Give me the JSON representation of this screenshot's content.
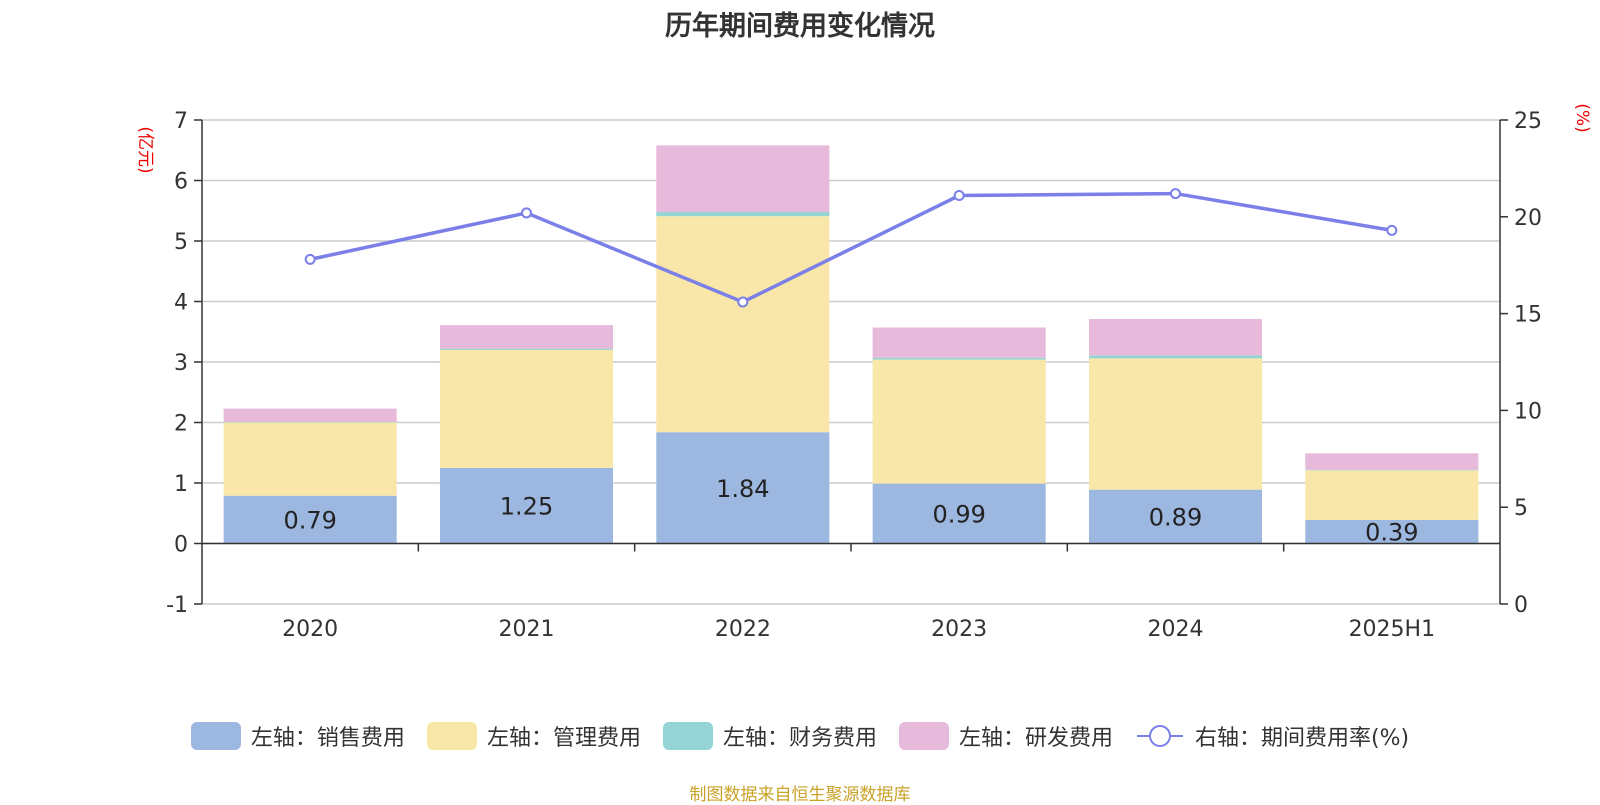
{
  "title": "历年期间费用变化情况",
  "left_unit": "(亿元)",
  "right_unit": "(%)",
  "source": "制图数据来自恒生聚源数据库",
  "colors": {
    "sales": "#9db8e0",
    "admin": "#f8e7a8",
    "finance": "#94d4d4",
    "rd": "#e7b9da",
    "rate": "#7b7fe8",
    "grid": "#cccccc",
    "axis": "#333333",
    "unit": "#ee0000"
  },
  "legend": [
    {
      "label": "左轴：销售费用",
      "key": "sales",
      "icon": "rect-swatch"
    },
    {
      "label": "左轴：管理费用",
      "key": "admin",
      "icon": "rect-swatch"
    },
    {
      "label": "左轴：财务费用",
      "key": "finance",
      "icon": "rect-swatch"
    },
    {
      "label": "左轴：研发费用",
      "key": "rd",
      "icon": "rect-swatch"
    },
    {
      "label": "右轴：期间费用率(%)",
      "key": "rate",
      "icon": "line-circle"
    }
  ],
  "chart_data": {
    "type": "bar",
    "stacked": true,
    "categories": [
      "2020",
      "2021",
      "2022",
      "2023",
      "2024",
      "2025H1"
    ],
    "series": [
      {
        "name": "左轴：销售费用",
        "key": "sales",
        "axis": "left",
        "values": [
          0.79,
          1.25,
          1.84,
          0.99,
          0.89,
          0.39
        ],
        "data_labels": [
          "0.79",
          "1.25",
          "1.84",
          "0.99",
          "0.89",
          "0.39"
        ]
      },
      {
        "name": "左轴：管理费用",
        "key": "admin",
        "axis": "left",
        "values": [
          1.21,
          1.95,
          3.57,
          2.05,
          2.17,
          0.82
        ]
      },
      {
        "name": "左轴：财务费用",
        "key": "finance",
        "axis": "left",
        "values": [
          0.01,
          0.02,
          0.07,
          0.03,
          0.05,
          0.01
        ]
      },
      {
        "name": "左轴：研发费用",
        "key": "rd",
        "axis": "left",
        "values": [
          0.22,
          0.39,
          1.1,
          0.5,
          0.6,
          0.27
        ]
      },
      {
        "name": "右轴：期间费用率(%)",
        "key": "rate",
        "axis": "right",
        "type": "line",
        "values": [
          17.8,
          20.2,
          15.6,
          21.1,
          21.2,
          19.3
        ]
      }
    ],
    "left_axis": {
      "min": -1,
      "max": 7,
      "ticks": [
        -1,
        0,
        1,
        2,
        3,
        4,
        5,
        6,
        7
      ],
      "unit": "(亿元)"
    },
    "right_axis": {
      "min": 0,
      "max": 25,
      "ticks": [
        0,
        5,
        10,
        15,
        20,
        25
      ],
      "unit": "(%)"
    },
    "grid": true,
    "legend_position": "bottom"
  }
}
